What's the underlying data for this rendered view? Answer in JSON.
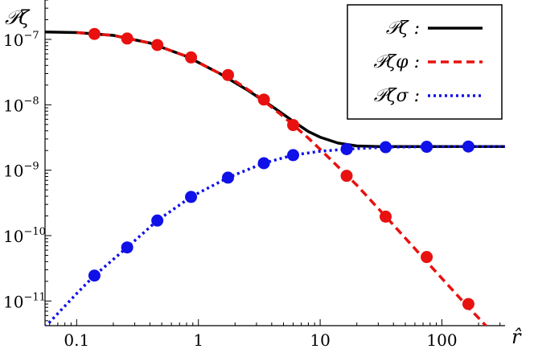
{
  "chart_data": {
    "type": "line",
    "xlabel": "r̂",
    "ylabel": "𝒫ζ",
    "xscale": "log",
    "yscale": "log",
    "xlim": [
      0.055,
      330
    ],
    "ylim": [
      4.2e-12,
      4e-07
    ],
    "x_ticks": [
      {
        "value": 0.1,
        "label": "0.1"
      },
      {
        "value": 1,
        "label": "1"
      },
      {
        "value": 10,
        "label": "10"
      },
      {
        "value": 100,
        "label": "100"
      }
    ],
    "y_ticks": [
      {
        "value": 1e-07,
        "base": "10",
        "exp": "−7"
      },
      {
        "value": 1e-08,
        "base": "10",
        "exp": "−8"
      },
      {
        "value": 1e-09,
        "base": "10",
        "exp": "−9"
      },
      {
        "value": 1e-10,
        "base": "10",
        "exp": "−10"
      },
      {
        "value": 1e-11,
        "base": "10",
        "exp": "−11"
      }
    ],
    "legend_position": "top-right",
    "series": [
      {
        "name": "𝒫ζ :",
        "color": "#000000",
        "style": "solid",
        "curve": {
          "x": [
            0.055,
            0.1,
            0.2,
            0.4,
            0.8,
            1.5,
            2.5,
            4,
            6,
            8,
            10,
            14,
            20,
            30,
            50,
            100,
            200,
            330
          ],
          "y": [
            1.3e-07,
            1.27e-07,
            1.15e-07,
            8.8e-08,
            5.5e-08,
            3e-08,
            1.7e-08,
            9.5e-09,
            5.6e-09,
            3.9e-09,
            3.2e-09,
            2.6e-09,
            2.35e-09,
            2.3e-09,
            2.3e-09,
            2.3e-09,
            2.3e-09,
            2.3e-09
          ]
        },
        "points": {
          "x": [],
          "y": []
        }
      },
      {
        "name": "𝒫ζφ :",
        "color": "#e8110f",
        "style": "dashed",
        "curve": {
          "x": [
            0.1,
            0.2,
            0.4,
            0.8,
            1.5,
            2,
            3,
            5,
            8,
            12,
            20,
            40,
            80,
            160,
            300
          ],
          "y": [
            1.27e-07,
            1.15e-07,
            8.8e-08,
            5.5e-08,
            3e-08,
            2.3e-08,
            1.4e-08,
            6.6e-09,
            3.1e-09,
            1.5e-09,
            5.9e-10,
            1.45e-10,
            3.5e-11,
            8.5e-12,
            2.5e-12
          ]
        },
        "points": {
          "x": [
            0.14,
            0.26,
            0.46,
            0.87,
            1.75,
            3.45,
            6.0,
            16.5,
            34.5,
            75,
            165
          ],
          "y": [
            1.21e-07,
            1.03e-07,
            8.2e-08,
            5.3e-08,
            2.85e-08,
            1.2e-08,
            4.9e-09,
            8.2e-10,
            1.95e-10,
            4.7e-11,
            9e-12
          ]
        }
      },
      {
        "name": "𝒫ζσ :",
        "color": "#1010e8",
        "style": "dotted",
        "curve": {
          "x": [
            0.055,
            0.1,
            0.14,
            0.26,
            0.46,
            0.87,
            1.75,
            3.45,
            6.0,
            10,
            16.5,
            34.5,
            75,
            165,
            330
          ],
          "y": [
            4e-12,
            1.3e-11,
            2.45e-11,
            6.6e-11,
            1.7e-10,
            3.9e-10,
            7.7e-10,
            1.28e-09,
            1.7e-09,
            1.95e-09,
            2.1e-09,
            2.25e-09,
            2.28e-09,
            2.3e-09,
            2.3e-09
          ]
        },
        "points": {
          "x": [
            0.14,
            0.26,
            0.46,
            0.87,
            1.75,
            3.45,
            6.0,
            16.5,
            34.5,
            75,
            165
          ],
          "y": [
            2.45e-11,
            6.6e-11,
            1.7e-10,
            3.9e-10,
            7.7e-10,
            1.28e-09,
            1.7e-09,
            2.1e-09,
            2.25e-09,
            2.28e-09,
            2.3e-09
          ]
        }
      }
    ]
  }
}
